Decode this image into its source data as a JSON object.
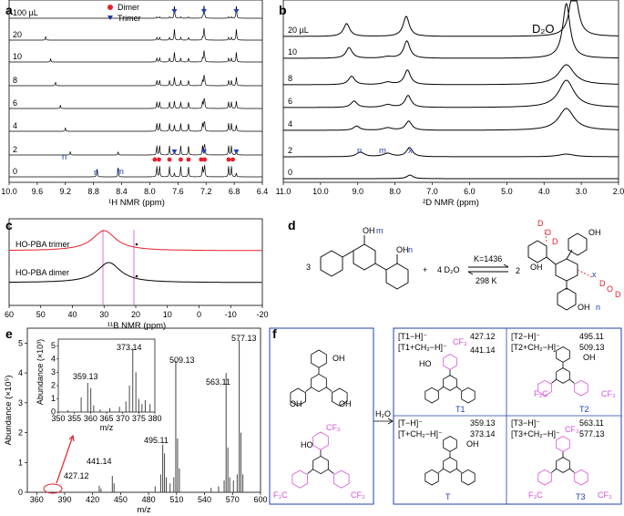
{
  "panels": {
    "a": {
      "label": "a",
      "legend": {
        "dimer": "Dimer",
        "trimer": "Trimer"
      },
      "trace_labels": [
        "100 µL",
        "20",
        "10",
        "8",
        "6",
        "4",
        "2",
        "0"
      ],
      "xticks": [
        "10.0",
        "9.6",
        "9.2",
        "8.8",
        "8.4",
        "8.0",
        "7.6",
        "7.2",
        "6.8",
        "6.4"
      ],
      "xlabel": "¹H NMR (ppm)",
      "annotations": {
        "n_top": "n",
        "n_bottom": "n",
        "m_bottom": "m"
      },
      "colors": {
        "dimer": "#e8202a",
        "trimer": "#1f3fb5"
      }
    },
    "b": {
      "label": "b",
      "trace_labels": [
        "20 µL",
        "10",
        "8",
        "6",
        "4",
        "2",
        "0"
      ],
      "xticks": [
        "11.0",
        "10.0",
        "9.0",
        "8.0",
        "7.0",
        "6.0",
        "5.0",
        "4.0",
        "3.0",
        "2.0"
      ],
      "xlabel": "²D NMR (ppm)",
      "peak_label": "D₂O",
      "annotations": {
        "n": "n",
        "m": "m",
        "x": "x"
      }
    },
    "c": {
      "label": "c",
      "trace_labels": [
        "HO-PBA trimer",
        "HO-PBA dimer"
      ],
      "xticks": [
        "60",
        "50",
        "40",
        "30",
        "20",
        "10",
        "0",
        "-10",
        "-20"
      ],
      "xlabel": "¹¹B NMR (ppm)",
      "colors": {
        "trimer": "#e8202a",
        "dimer": "#000000",
        "guide": "#d94fd9"
      }
    },
    "d": {
      "label": "d",
      "coef_left": "3",
      "plus": "+",
      "reagent": "4 D₂O",
      "arrow_top": "K=1436",
      "arrow_bottom": "298 K",
      "coef_right": "2",
      "labels_left": {
        "m": "m",
        "n": "n",
        "oh1": "OH",
        "oh2": "OH"
      },
      "labels_right": {
        "x": "x",
        "n": "n",
        "d1": "D",
        "o1": "O",
        "d2": "D",
        "d3": "D",
        "o2": "O",
        "d4": "D",
        "oh1": "OH",
        "oh2": "OH",
        "oh3": "OH"
      }
    },
    "e": {
      "label": "e",
      "ylabel": "Abundance (×10⁵)",
      "xlabel": "m/z",
      "xticks": [
        "360",
        "390",
        "420",
        "450",
        "480",
        "510",
        "540",
        "570",
        "600"
      ],
      "yticks": [
        "0",
        "1",
        "2",
        "3",
        "4",
        "5"
      ],
      "peak_labels": [
        "577.13",
        "509.13",
        "563.11",
        "495.11",
        "441.14",
        "427.12"
      ],
      "inset": {
        "ylabel": "Abundance (×10³)",
        "xlabel": "m/z",
        "xticks": [
          "350",
          "355",
          "360",
          "365",
          "370",
          "375",
          "380"
        ],
        "yticks": [
          "0",
          "1",
          "2",
          "3",
          "4",
          "5"
        ],
        "peak_labels": [
          "373.14",
          "359.13"
        ]
      }
    },
    "f": {
      "label": "f",
      "arrow_label": "H₂O",
      "cells": [
        {
          "ion1": "[T1−H]⁻",
          "mz1": "427.12",
          "ion2": "[T1+CH₂−H]⁻",
          "mz2": "441.14",
          "name": "T1"
        },
        {
          "ion1": "[T2−H]⁻",
          "mz1": "495.11",
          "ion2": "[T2+CH₂−H]⁻",
          "mz2": "509.13",
          "name": "T2"
        },
        {
          "ion1": "[T−H]⁻",
          "mz1": "359.13",
          "ion2": "[T+CH₂−H]⁻",
          "mz2": "373.14",
          "name": "T"
        },
        {
          "ion1": "[T3−H]⁻",
          "mz1": "563.11",
          "ion2": "[T3+CH₂−H]⁻",
          "mz2": "577.13",
          "name": "T3"
        }
      ],
      "atoms": {
        "oh": "OH",
        "cf3": "CF₃",
        "f3c": "F₃C",
        "b": "B",
        "o": "O",
        "ho": "HO"
      },
      "colors": {
        "border": "#1f3fb5",
        "cf3": "#d94fd9"
      }
    }
  }
}
